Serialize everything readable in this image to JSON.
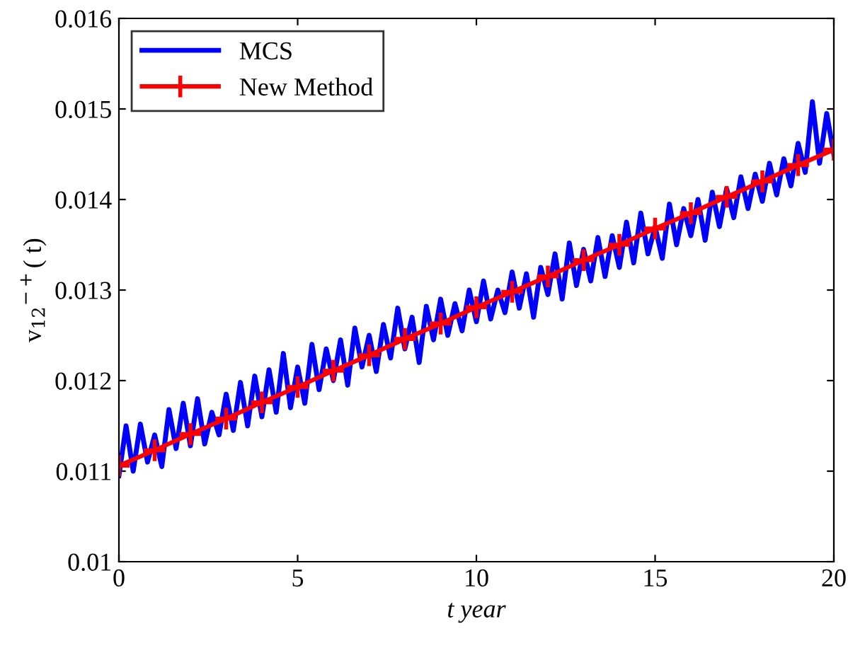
{
  "chart_data": {
    "type": "line",
    "xlabel": "t year",
    "ylabel": "v$_{12}$$^{−+}$( t)",
    "xlim": [
      0,
      20
    ],
    "xticks": [
      0,
      5,
      10,
      15,
      20
    ],
    "ylim": [
      0.01,
      0.016
    ],
    "yticks": [
      0.01,
      0.011,
      0.012,
      0.013,
      0.014,
      0.015,
      0.016
    ],
    "grid": false,
    "legend": "top left",
    "series": [
      {
        "name": "MCS",
        "color": "#0000ff",
        "marker": "none",
        "x": [
          0,
          0.2,
          0.4,
          0.6,
          0.8,
          1,
          1.2,
          1.4,
          1.6,
          1.8,
          2,
          2.2,
          2.4,
          2.6,
          2.8,
          3,
          3.2,
          3.4,
          3.6,
          3.8,
          4,
          4.2,
          4.4,
          4.6,
          4.8,
          5,
          5.2,
          5.4,
          5.6,
          5.8,
          6,
          6.2,
          6.4,
          6.6,
          6.8,
          7,
          7.2,
          7.4,
          7.6,
          7.8,
          8,
          8.2,
          8.4,
          8.6,
          8.8,
          9,
          9.2,
          9.4,
          9.6,
          9.8,
          10,
          10.2,
          10.4,
          10.6,
          10.8,
          11,
          11.2,
          11.4,
          11.6,
          11.8,
          12,
          12.2,
          12.4,
          12.6,
          12.8,
          13,
          13.2,
          13.4,
          13.6,
          13.8,
          14,
          14.2,
          14.4,
          14.6,
          14.8,
          15,
          15.2,
          15.4,
          15.6,
          15.8,
          16,
          16.2,
          16.4,
          16.6,
          16.8,
          17,
          17.2,
          17.4,
          17.6,
          17.8,
          18,
          18.2,
          18.4,
          18.6,
          18.8,
          19,
          19.2,
          19.4,
          19.6,
          19.8,
          20
        ],
        "values": [
          0.01095,
          0.0115,
          0.011,
          0.01152,
          0.0111,
          0.0114,
          0.01105,
          0.01168,
          0.01125,
          0.01175,
          0.01128,
          0.0118,
          0.0113,
          0.01165,
          0.0114,
          0.01185,
          0.01145,
          0.01198,
          0.0115,
          0.01205,
          0.0116,
          0.01212,
          0.01165,
          0.0123,
          0.0117,
          0.01215,
          0.01175,
          0.0124,
          0.0119,
          0.01235,
          0.012,
          0.01245,
          0.01195,
          0.01258,
          0.01215,
          0.0125,
          0.0121,
          0.01262,
          0.01225,
          0.0128,
          0.01235,
          0.0127,
          0.0122,
          0.01282,
          0.01245,
          0.0129,
          0.0125,
          0.01285,
          0.01255,
          0.013,
          0.01265,
          0.0131,
          0.01268,
          0.013,
          0.01275,
          0.0132,
          0.0128,
          0.01318,
          0.0127,
          0.01325,
          0.01295,
          0.0134,
          0.0129,
          0.01352,
          0.01305,
          0.01345,
          0.0131,
          0.01358,
          0.01315,
          0.0136,
          0.01325,
          0.01375,
          0.0133,
          0.01385,
          0.0134,
          0.0137,
          0.01335,
          0.01395,
          0.0135,
          0.0139,
          0.0136,
          0.014,
          0.01355,
          0.01408,
          0.0137,
          0.01412,
          0.0138,
          0.01425,
          0.0139,
          0.01428,
          0.01398,
          0.0144,
          0.01405,
          0.01445,
          0.01415,
          0.01462,
          0.0143,
          0.01508,
          0.0144,
          0.01495,
          0.0145
        ]
      },
      {
        "name": "New Method",
        "color": "#ff0000",
        "marker": "cross",
        "x": [
          0,
          1,
          2,
          3,
          4,
          5,
          6,
          7,
          8,
          9,
          10,
          11,
          12,
          13,
          14,
          15,
          16,
          17,
          18,
          19,
          20
        ],
        "values": [
          0.01106,
          0.01123,
          0.01141,
          0.01158,
          0.01176,
          0.01193,
          0.01211,
          0.01228,
          0.01246,
          0.01263,
          0.01281,
          0.01298,
          0.01315,
          0.01333,
          0.0135,
          0.01368,
          0.01385,
          0.01403,
          0.0142,
          0.01438,
          0.01455
        ]
      }
    ]
  }
}
